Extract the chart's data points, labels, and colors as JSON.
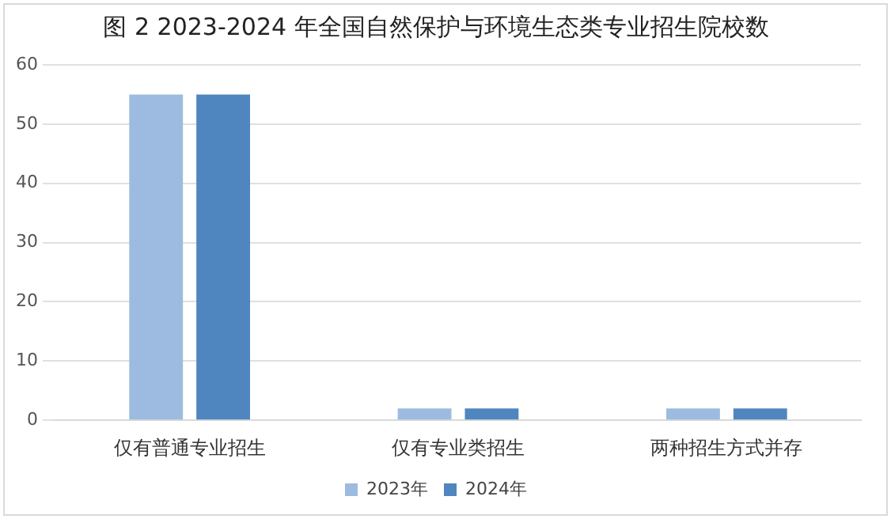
{
  "chart_data": {
    "type": "bar",
    "title": "图 2 2023-2024 年全国自然保护与环境生态类专业招生院校数",
    "categories": [
      "仅有普通专业招生",
      "仅有专业类招生",
      "两种招生方式并存"
    ],
    "series": [
      {
        "name": "2023年",
        "color": "#9dbbe0",
        "values": [
          55,
          2,
          2
        ]
      },
      {
        "name": "2024年",
        "color": "#4f86c0",
        "values": [
          55,
          2,
          2
        ]
      }
    ],
    "ylim": [
      0,
      60
    ],
    "yticks": [
      0,
      10,
      20,
      30,
      40,
      50,
      60
    ],
    "grid": "y",
    "legend": "bottom"
  }
}
